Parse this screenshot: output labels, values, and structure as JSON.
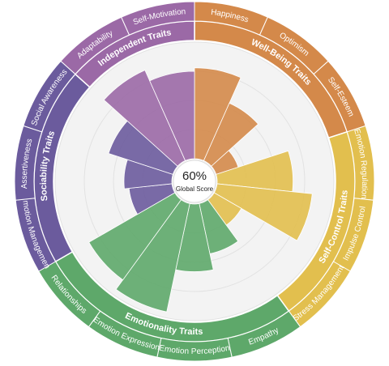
{
  "chart_data": {
    "type": "radial_bar",
    "center_label": "60%",
    "center_caption": "Global Score",
    "rlim": [
      0,
      100
    ],
    "rticks": [
      25,
      50,
      75,
      100
    ],
    "grid": true,
    "series": [
      {
        "name": "Well-Being Traits",
        "color": "#d4894a",
        "categories": [
          "Happiness",
          "Optimism",
          "Self-Esteem"
        ],
        "values": [
          78,
          54,
          20
        ]
      },
      {
        "name": "Self-Control Traits",
        "color": "#e2bf4e",
        "categories": [
          "Emotion Regulation",
          "Impulse Control",
          "Stress Management"
        ],
        "values": [
          65,
          82,
          27
        ]
      },
      {
        "name": "Emotionality Traits",
        "color": "#5ea86a",
        "categories": [
          "Empathy",
          "Emotion Perception",
          "Emotion Expression",
          "Relationships"
        ],
        "values": [
          44,
          58,
          95,
          85
        ]
      },
      {
        "name": "Sociability Traits",
        "color": "#6b5b9d",
        "categories": [
          "Emotion Management",
          "Assertiveness",
          "Social Awareness"
        ],
        "values": [
          37,
          41,
          58
        ]
      },
      {
        "name": "Independent Traits",
        "color": "#9b69a6",
        "categories": [
          "Adaptability",
          "Self-Motivation"
        ],
        "values": [
          85,
          75
        ]
      }
    ]
  }
}
